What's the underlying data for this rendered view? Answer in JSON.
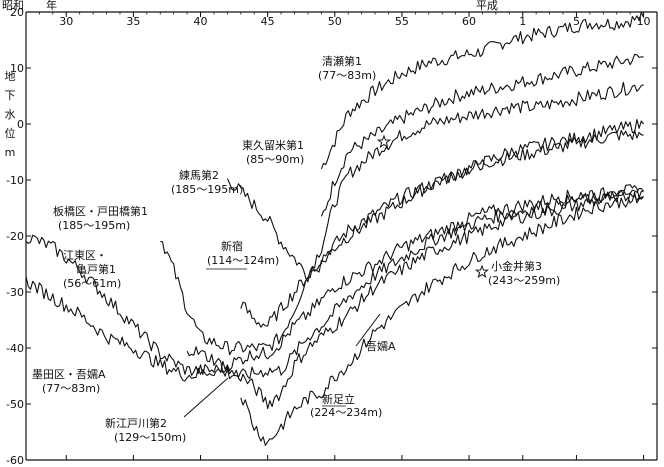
{
  "chart_data": {
    "type": "line",
    "ylabel": "地下水位 m",
    "era_labels": {
      "showa_era": "昭和",
      "showa_year": "年",
      "heisei_era": "平成"
    },
    "x_ticks": [
      {
        "year": 1955,
        "label": "30"
      },
      {
        "year": 1960,
        "label": "35"
      },
      {
        "year": 1965,
        "label": "40"
      },
      {
        "year": 1970,
        "label": "45"
      },
      {
        "year": 1975,
        "label": "50"
      },
      {
        "year": 1980,
        "label": "55"
      },
      {
        "year": 1985,
        "label": "60"
      },
      {
        "year": 1989,
        "label": "1"
      },
      {
        "year": 1993,
        "label": "5"
      },
      {
        "year": 1998,
        "label": "10"
      }
    ],
    "xlim": [
      1952,
      1999
    ],
    "y_ticks": [
      20,
      10,
      0,
      -10,
      -20,
      -30,
      -40,
      -50,
      -60
    ],
    "ylim": [
      -60,
      20
    ],
    "series": [
      {
        "name": "清瀬第1 (77～83m)",
        "label_line1": "清瀬第1",
        "label_line2": "(77～83m)",
        "x": [
          1974,
          1975,
          1976,
          1977,
          1978,
          1980,
          1982,
          1984,
          1986,
          1988,
          1990,
          1992,
          1994,
          1996,
          1998
        ],
        "y": [
          -8,
          -3,
          2,
          4,
          6,
          9,
          11,
          12,
          13,
          15,
          16,
          17,
          18,
          18,
          19
        ]
      },
      {
        "name": "東久留米第1 (85～90m)",
        "label_line1": "東久留米第1",
        "label_line2": "(85～90m)",
        "x": [
          1974,
          1975,
          1976,
          1978,
          1980,
          1982,
          1984,
          1986,
          1988,
          1990,
          1992,
          1994,
          1996,
          1998
        ],
        "y": [
          -17,
          -10,
          -5,
          -2,
          1,
          3,
          5,
          6,
          7,
          8,
          9,
          10,
          11,
          12
        ]
      },
      {
        "name": "練馬第2 (185～195m)",
        "label_line1": "練馬第2",
        "label_line2": "(185～195m)",
        "x": [
          1967,
          1968,
          1970,
          1971,
          1972,
          1973,
          1974,
          1975,
          1976,
          1978,
          1980,
          1982,
          1984,
          1986,
          1988,
          1990,
          1992,
          1994,
          1996,
          1998
        ],
        "y": [
          -10,
          -12,
          -17,
          -21,
          -24,
          -27,
          -22,
          -14,
          -9,
          -5,
          -2,
          0,
          1,
          2,
          3,
          3,
          4,
          5,
          6,
          7
        ]
      },
      {
        "name": "板橋区・戸田橋第1 (185～195m)",
        "label_line1": "板橋区・戸田橋第1",
        "label_line2": "(185～195m)",
        "x": [
          1962,
          1963,
          1964,
          1965,
          1966,
          1967,
          1968,
          1970,
          1971,
          1972,
          1973,
          1974,
          1976,
          1978,
          1980,
          1982,
          1984,
          1986,
          1988,
          1990,
          1992,
          1994,
          1996,
          1998
        ],
        "y": [
          -20,
          -26,
          -33,
          -38,
          -39,
          -40,
          -40,
          -40,
          -38,
          -33,
          -27,
          -24,
          -19,
          -16,
          -13,
          -11,
          -9,
          -7,
          -6,
          -5,
          -4,
          -3,
          -2,
          -2
        ]
      },
      {
        "name": "新宿 (114～124m)",
        "label_line1": "新宿",
        "label_line2": "(114～124m)",
        "x": [
          1968,
          1969,
          1970,
          1971,
          1972,
          1973,
          1974,
          1975,
          1976,
          1978,
          1980,
          1982,
          1984,
          1986,
          1988,
          1990,
          1992,
          1994,
          1996,
          1998
        ],
        "y": [
          -32,
          -35,
          -36,
          -33,
          -30,
          -27,
          -25,
          -22,
          -20,
          -17,
          -14,
          -11,
          -9,
          -7,
          -5,
          -4,
          -3,
          -2,
          -1,
          0
        ]
      },
      {
        "name": "江東区・亀戸第1 (56～61m)",
        "label_line1": "江東区・",
        "label_line2": "亀戸第1",
        "label_line3": "(56～61m)",
        "x": [
          1952,
          1954,
          1956,
          1958,
          1960,
          1962,
          1964,
          1966,
          1968,
          1969,
          1970,
          1971,
          1972,
          1973,
          1975,
          1978,
          1980,
          1982,
          1984,
          1986,
          1988,
          1990,
          1992,
          1994,
          1996,
          1998
        ],
        "y": [
          -20,
          -22,
          -26,
          -31,
          -36,
          -41,
          -44,
          -44,
          -42,
          -41,
          -41,
          -39,
          -36,
          -34,
          -29,
          -25,
          -22,
          -20,
          -18,
          -16,
          -15,
          -14,
          -13,
          -13,
          -12,
          -12
        ]
      },
      {
        "name": "墨田区・吾嬬A (77～83m)",
        "label_line1": "墨田区・吾嬬A",
        "label_line2": "(77～83m)",
        "x": [
          1952,
          1954,
          1956,
          1958,
          1960,
          1962,
          1964,
          1966,
          1968,
          1970,
          1971,
          1972,
          1973,
          1974,
          1976,
          1978,
          1980,
          1982,
          1984,
          1986,
          1988,
          1990,
          1992,
          1994,
          1996,
          1998
        ],
        "y": [
          -28,
          -31,
          -34,
          -38,
          -40,
          -43,
          -45,
          -44,
          -45,
          -44,
          -44,
          -41,
          -38,
          -36,
          -31,
          -27,
          -24,
          -21,
          -19,
          -17,
          -16,
          -15,
          -14,
          -13,
          -13,
          -12
        ]
      },
      {
        "name": "新江戸川第2 (129～150m)",
        "label_line1": "新江戸川第2",
        "label_line2": "(129～150m)",
        "x": [
          1964,
          1966,
          1967,
          1968,
          1969,
          1970,
          1971,
          1972,
          1973,
          1974,
          1976,
          1978,
          1980,
          1982,
          1984,
          1986,
          1988,
          1990,
          1992,
          1994,
          1996,
          1998
        ],
        "y": [
          -40,
          -42,
          -44,
          -45,
          -47,
          -50,
          -48,
          -43,
          -40,
          -38,
          -34,
          -29,
          -26,
          -23,
          -21,
          -19,
          -17,
          -16,
          -15,
          -14,
          -13,
          -13
        ]
      },
      {
        "name": "新足立 (224～234m)",
        "label_line1": "新足立",
        "label_line2": "(224～234m)",
        "x": [
          1968,
          1969,
          1970,
          1971,
          1972,
          1973,
          1974,
          1975,
          1976,
          1977,
          1978,
          1980,
          1982,
          1984,
          1986,
          1988,
          1990,
          1992,
          1994,
          1996,
          1998
        ],
        "y": [
          -48,
          -54,
          -57,
          -54,
          -51,
          -49,
          -48,
          -45,
          -43,
          -40,
          -37,
          -33,
          -29,
          -26,
          -23,
          -21,
          -19,
          -17,
          -15,
          -14,
          -13
        ]
      },
      {
        "name": "吾嬬A",
        "label_line1": "吾嬬A"
      },
      {
        "name": "小金井第3 (243～259m)",
        "label_line1": "小金井第3",
        "label_line2": "(243～259m)",
        "x": [
          1987
        ],
        "y": [
          -25
        ]
      }
    ]
  }
}
